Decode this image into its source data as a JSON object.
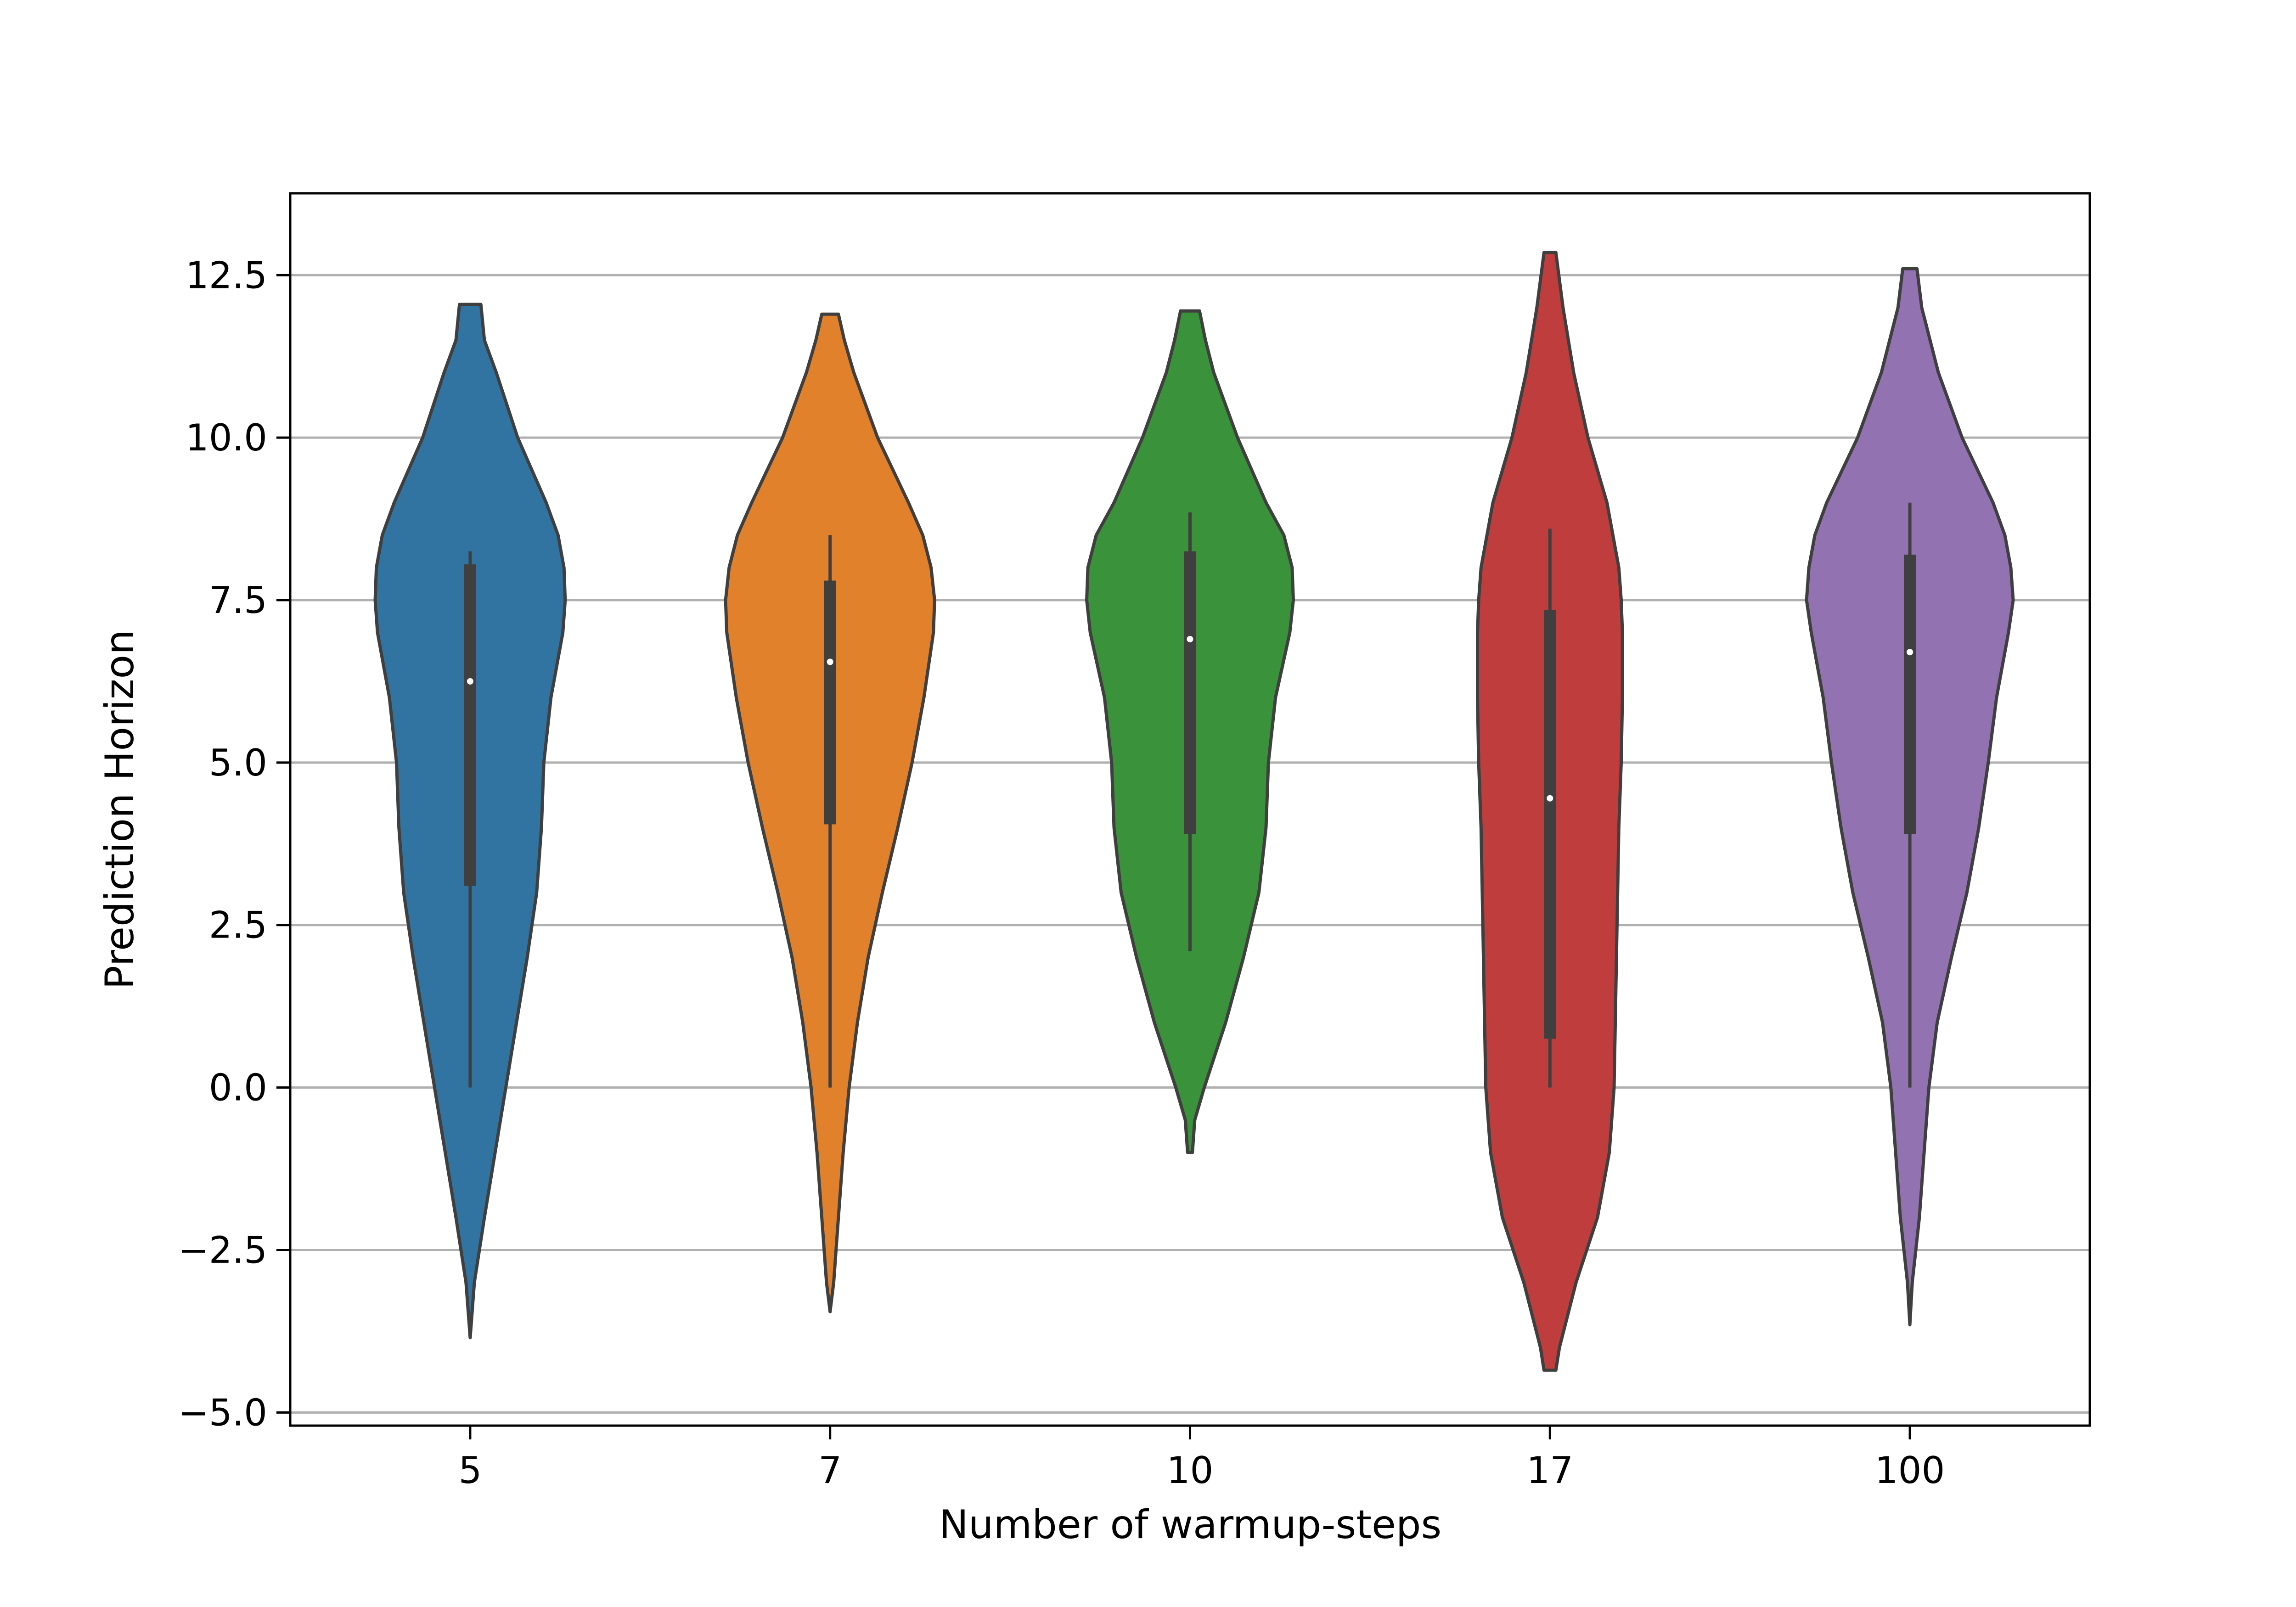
{
  "chart_data": {
    "type": "violin",
    "title": "",
    "xlabel": "Number of warmup-steps",
    "ylabel": "Prediction Horizon",
    "categories": [
      "5",
      "7",
      "10",
      "17",
      "100"
    ],
    "ylim": [
      -5.2,
      13.8
    ],
    "yticks": [
      -5.0,
      -2.5,
      0.0,
      2.5,
      5.0,
      7.5,
      10.0,
      12.5
    ],
    "ytick_labels": [
      "−5.0",
      "−2.5",
      "0.0",
      "2.5",
      "5.0",
      "7.5",
      "10.0",
      "12.5"
    ],
    "grid": "y-major",
    "violins": [
      {
        "category": "5",
        "color": "#3274a1",
        "min": -3.85,
        "max": 12.05,
        "whisker_low": 0.0,
        "q1": 3.1,
        "median": 6.25,
        "q3": 8.05,
        "whisker_high": 8.25,
        "density": [
          [
            -3.85,
            0.0
          ],
          [
            -3.0,
            0.035
          ],
          [
            -2.0,
            0.12
          ],
          [
            -1.0,
            0.21
          ],
          [
            0.0,
            0.3
          ],
          [
            1.0,
            0.39
          ],
          [
            2.0,
            0.48
          ],
          [
            2.5,
            0.52
          ],
          [
            3.0,
            0.56
          ],
          [
            4.0,
            0.6
          ],
          [
            5.0,
            0.62
          ],
          [
            6.0,
            0.68
          ],
          [
            7.0,
            0.78
          ],
          [
            7.5,
            0.8
          ],
          [
            8.0,
            0.79
          ],
          [
            8.5,
            0.74
          ],
          [
            9.0,
            0.64
          ],
          [
            10.0,
            0.4
          ],
          [
            11.0,
            0.22
          ],
          [
            11.5,
            0.12
          ],
          [
            12.05,
            0.09
          ]
        ]
      },
      {
        "category": "7",
        "color": "#e1812c",
        "min": -3.45,
        "max": 11.9,
        "whisker_low": 0.0,
        "q1": 4.05,
        "median": 6.55,
        "q3": 7.8,
        "whisker_high": 8.5,
        "density": [
          [
            -3.45,
            0.0
          ],
          [
            -3.0,
            0.03
          ],
          [
            -2.0,
            0.07
          ],
          [
            -1.0,
            0.11
          ],
          [
            0.0,
            0.16
          ],
          [
            1.0,
            0.23
          ],
          [
            2.0,
            0.32
          ],
          [
            3.0,
            0.44
          ],
          [
            4.0,
            0.57
          ],
          [
            5.0,
            0.69
          ],
          [
            6.0,
            0.79
          ],
          [
            7.0,
            0.87
          ],
          [
            7.5,
            0.88
          ],
          [
            8.0,
            0.85
          ],
          [
            8.5,
            0.78
          ],
          [
            9.0,
            0.66
          ],
          [
            10.0,
            0.4
          ],
          [
            11.0,
            0.2
          ],
          [
            11.5,
            0.12
          ],
          [
            11.9,
            0.07
          ]
        ]
      },
      {
        "category": "10",
        "color": "#3a923a",
        "min": -1.0,
        "max": 11.95,
        "whisker_low": 2.1,
        "q1": 3.9,
        "median": 6.9,
        "q3": 8.25,
        "whisker_high": 8.85,
        "density": [
          [
            -1.0,
            0.02
          ],
          [
            -0.5,
            0.04
          ],
          [
            0.0,
            0.12
          ],
          [
            1.0,
            0.3
          ],
          [
            2.0,
            0.45
          ],
          [
            3.0,
            0.58
          ],
          [
            4.0,
            0.64
          ],
          [
            5.0,
            0.66
          ],
          [
            6.0,
            0.72
          ],
          [
            7.0,
            0.84
          ],
          [
            7.5,
            0.87
          ],
          [
            8.0,
            0.86
          ],
          [
            8.5,
            0.79
          ],
          [
            9.0,
            0.64
          ],
          [
            10.0,
            0.4
          ],
          [
            11.0,
            0.2
          ],
          [
            11.5,
            0.13
          ],
          [
            11.95,
            0.08
          ]
        ]
      },
      {
        "category": "17",
        "color": "#c03d3e",
        "min": -4.35,
        "max": 12.85,
        "whisker_low": 0.0,
        "q1": 0.75,
        "median": 4.45,
        "q3": 7.35,
        "whisker_high": 8.6,
        "density": [
          [
            -4.35,
            0.05
          ],
          [
            -4.0,
            0.08
          ],
          [
            -3.0,
            0.22
          ],
          [
            -2.0,
            0.4
          ],
          [
            -1.0,
            0.5
          ],
          [
            0.0,
            0.54
          ],
          [
            1.0,
            0.55
          ],
          [
            2.0,
            0.56
          ],
          [
            3.0,
            0.57
          ],
          [
            4.0,
            0.58
          ],
          [
            5.0,
            0.6
          ],
          [
            6.0,
            0.61
          ],
          [
            7.0,
            0.61
          ],
          [
            7.5,
            0.6
          ],
          [
            8.0,
            0.58
          ],
          [
            9.0,
            0.48
          ],
          [
            10.0,
            0.32
          ],
          [
            11.0,
            0.2
          ],
          [
            12.0,
            0.11
          ],
          [
            12.85,
            0.05
          ]
        ]
      },
      {
        "category": "100",
        "color": "#9372b2",
        "min": -3.65,
        "max": 12.6,
        "whisker_low": 0.0,
        "q1": 3.9,
        "median": 6.7,
        "q3": 8.2,
        "whisker_high": 9.0,
        "density": [
          [
            -3.65,
            0.0
          ],
          [
            -3.0,
            0.02
          ],
          [
            -2.0,
            0.08
          ],
          [
            -1.0,
            0.12
          ],
          [
            0.0,
            0.16
          ],
          [
            1.0,
            0.23
          ],
          [
            2.0,
            0.35
          ],
          [
            3.0,
            0.48
          ],
          [
            4.0,
            0.58
          ],
          [
            5.0,
            0.66
          ],
          [
            6.0,
            0.73
          ],
          [
            7.0,
            0.83
          ],
          [
            7.5,
            0.87
          ],
          [
            8.0,
            0.85
          ],
          [
            8.5,
            0.8
          ],
          [
            9.0,
            0.7
          ],
          [
            10.0,
            0.44
          ],
          [
            11.0,
            0.24
          ],
          [
            12.0,
            0.1
          ],
          [
            12.6,
            0.06
          ]
        ]
      }
    ]
  }
}
